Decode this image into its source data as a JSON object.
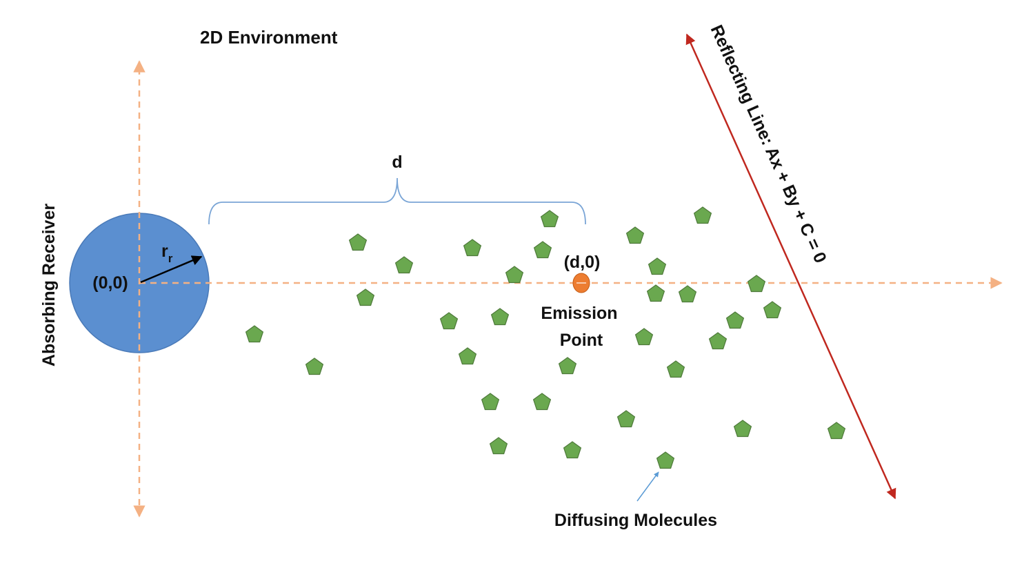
{
  "title": "2D Environment",
  "colors": {
    "axis": "#f4b183",
    "receiver_fill": "#5b8fd0",
    "receiver_stroke": "#4a7ab8",
    "molecule_fill": "#6aa84f",
    "molecule_stroke": "#4e7a3a",
    "emission_fill": "#ed7d31",
    "reflecting_line": "#c0281f",
    "brace": "#7aa5d6",
    "pointer": "#5b9bd5"
  },
  "receiver": {
    "label": "Absorbing Receiver",
    "origin_label": "(0,0)",
    "radius_symbol": "r",
    "radius_subscript": "r"
  },
  "distance_label": "d",
  "emission": {
    "coord_label": "(d,0)",
    "label_line1": "Emission",
    "label_line2": "Point"
  },
  "reflecting_line": {
    "label": "Reflecting Line: Ax + By + C = 0"
  },
  "molecules": {
    "label": "Diffusing Molecules",
    "count": 34
  }
}
